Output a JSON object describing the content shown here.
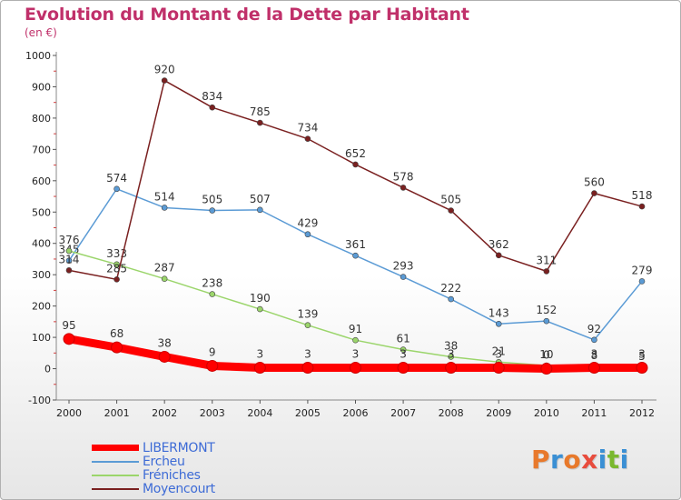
{
  "header": {
    "title": "Evolution du Montant de la Dette par Habitant",
    "subtitle": "(en €)"
  },
  "brand": {
    "logo_text": "Proxiti",
    "logo_colors": [
      "#e8792b",
      "#3a8fd4",
      "#e8792b",
      "#e84c3d",
      "#3a8fd4",
      "#7ab82e",
      "#3a8fd4"
    ]
  },
  "chart_data": {
    "type": "line",
    "title": "Evolution du Montant de la Dette par Habitant",
    "subtitle": "(en €)",
    "xlabel": "",
    "ylabel": "",
    "x": [
      2000,
      2001,
      2002,
      2003,
      2004,
      2005,
      2006,
      2007,
      2008,
      2009,
      2010,
      2011,
      2012
    ],
    "x_tick_labels": [
      "2000",
      "2001",
      "2002",
      "2003",
      "2004",
      "2005",
      "2006",
      "2007",
      "2008",
      "2009",
      "2010",
      "2011",
      "2012"
    ],
    "ylim": [
      -100,
      1000
    ],
    "y_ticks": [
      -100,
      0,
      100,
      200,
      300,
      400,
      500,
      600,
      700,
      800,
      900,
      1000
    ],
    "y_tick_labels": [
      "-100",
      "0",
      "100",
      "200",
      "300",
      "400",
      "500",
      "600",
      "700",
      "800",
      "900",
      "1000"
    ],
    "grid": false,
    "legend_position": "bottom-left",
    "series": [
      {
        "name": "Ercheu",
        "color": "#5b9bd5",
        "values": [
          345,
          574,
          514,
          505,
          507,
          429,
          361,
          293,
          222,
          143,
          152,
          92,
          279
        ],
        "labels": [
          "345",
          "574",
          "514",
          "505",
          "507",
          "429",
          "361",
          "293",
          "222",
          "143",
          "152",
          "92",
          "279"
        ]
      },
      {
        "name": "Fréniches",
        "color": "#9bd56b",
        "values": [
          376,
          333,
          287,
          238,
          190,
          139,
          91,
          61,
          38,
          21,
          10,
          8,
          5
        ],
        "labels": [
          "376",
          "333",
          "287",
          "238",
          "190",
          "139",
          "91",
          "61",
          "38",
          "21",
          "10",
          "8",
          "5"
        ]
      },
      {
        "name": "Moyencourt",
        "color": "#7a2020",
        "values": [
          314,
          285,
          920,
          834,
          785,
          734,
          652,
          578,
          505,
          362,
          311,
          560,
          518
        ],
        "labels": [
          "314",
          "285",
          "920",
          "834",
          "785",
          "734",
          "652",
          "578",
          "505",
          "362",
          "311",
          "560",
          "518"
        ]
      },
      {
        "name": "LIBERMONT",
        "color": "#ff0000",
        "values": [
          95,
          68,
          38,
          9,
          3,
          3,
          3,
          3,
          3,
          3,
          0,
          3,
          3
        ],
        "labels": [
          "95",
          "68",
          "38",
          "9",
          "3",
          "3",
          "3",
          "3",
          "3",
          "3",
          "0",
          "3",
          "3"
        ]
      }
    ],
    "legend": [
      {
        "name": "LIBERMONT",
        "color": "#ff0000",
        "thick": true
      },
      {
        "name": "Ercheu",
        "color": "#5b9bd5",
        "thick": false
      },
      {
        "name": "Fréniches",
        "color": "#9bd56b",
        "thick": false
      },
      {
        "name": "Moyencourt",
        "color": "#7a2020",
        "thick": false
      }
    ]
  }
}
